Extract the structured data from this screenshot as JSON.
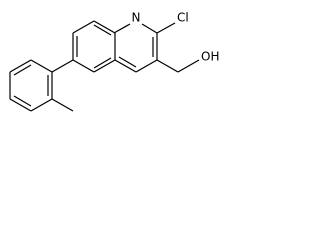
{
  "labels": {
    "nitrogen": "N",
    "chlorine": "Cl",
    "hydroxyl": "OH"
  }
}
